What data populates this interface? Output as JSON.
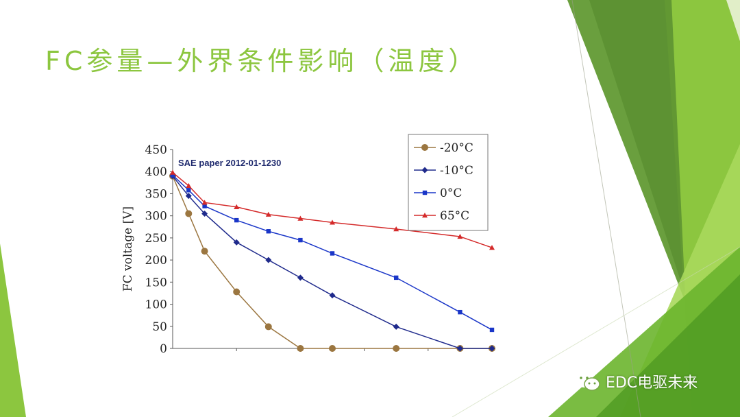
{
  "slide": {
    "title": "FC参量—外界条件影响（温度）",
    "accent_color": "#8cc63f"
  },
  "watermark": {
    "icon": "wechat-icon",
    "text": "EDC电驱未来"
  },
  "chart_data": {
    "type": "line",
    "title": "",
    "annotation": "SAE  paper 2012-01-1230",
    "xlabel": "",
    "ylabel": "FC voltage [V]",
    "xlim": [
      0,
      10
    ],
    "ylim": [
      0,
      450
    ],
    "yticks": [
      0,
      50,
      100,
      150,
      200,
      250,
      300,
      350,
      400,
      450
    ],
    "x": [
      0,
      0.5,
      1,
      2,
      3,
      4,
      5,
      7,
      9,
      10
    ],
    "legend_position": "top-right",
    "series": [
      {
        "name": "-20°C",
        "color": "#9b7640",
        "marker": "circle",
        "values": [
          390,
          305,
          220,
          128,
          49,
          0,
          0,
          0,
          0,
          0
        ]
      },
      {
        "name": "-10°C",
        "color": "#1f2a8c",
        "marker": "diamond",
        "values": [
          390,
          345,
          305,
          240,
          200,
          160,
          120,
          49,
          0,
          0
        ]
      },
      {
        "name": "0°C",
        "color": "#1a36c8",
        "marker": "square",
        "values": [
          392,
          358,
          322,
          290,
          265,
          245,
          215,
          160,
          82,
          42
        ]
      },
      {
        "name": "65°C",
        "color": "#d42a2a",
        "marker": "triangle",
        "values": [
          398,
          368,
          330,
          320,
          303,
          294,
          285,
          270,
          253,
          228
        ]
      }
    ]
  }
}
